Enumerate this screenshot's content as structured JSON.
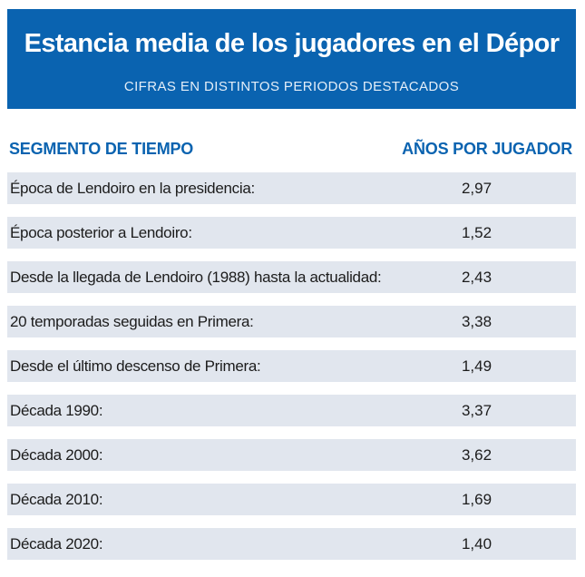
{
  "header": {
    "title": "Estancia media de los jugadores en el Dépor",
    "subtitle": "CIFRAS EN DISTINTOS PERIODOS DESTACADOS"
  },
  "columns": {
    "segment": "SEGMENTO DE TIEMPO",
    "years": "AÑOS POR JUGADOR"
  },
  "colors": {
    "accent": "#0a63b0",
    "row_background": "#e1e6ee"
  },
  "chart_data": {
    "type": "table",
    "title": "Estancia media de los jugadores en el Dépor",
    "subtitle": "CIFRAS EN DISTINTOS PERIODOS DESTACADOS",
    "columns": [
      "SEGMENTO DE TIEMPO",
      "AÑOS POR JUGADOR"
    ],
    "rows": [
      {
        "label": "Época de Lendoiro en la presidencia:",
        "value": 2.97,
        "display": "2,97"
      },
      {
        "label": "Época posterior a Lendoiro:",
        "value": 1.52,
        "display": "1,52"
      },
      {
        "label": "Desde la llegada de Lendoiro (1988) hasta la actualidad:",
        "value": 2.43,
        "display": "2,43"
      },
      {
        "label": "20 temporadas seguidas en Primera:",
        "value": 3.38,
        "display": "3,38"
      },
      {
        "label": "Desde el último descenso de Primera:",
        "value": 1.49,
        "display": "1,49"
      },
      {
        "label": "Década 1990:",
        "value": 3.37,
        "display": "3,37"
      },
      {
        "label": "Década 2000:",
        "value": 3.62,
        "display": "3,62"
      },
      {
        "label": "Década 2010:",
        "value": 1.69,
        "display": "1,69"
      },
      {
        "label": "Década 2020:",
        "value": 1.4,
        "display": "1,40"
      }
    ]
  }
}
